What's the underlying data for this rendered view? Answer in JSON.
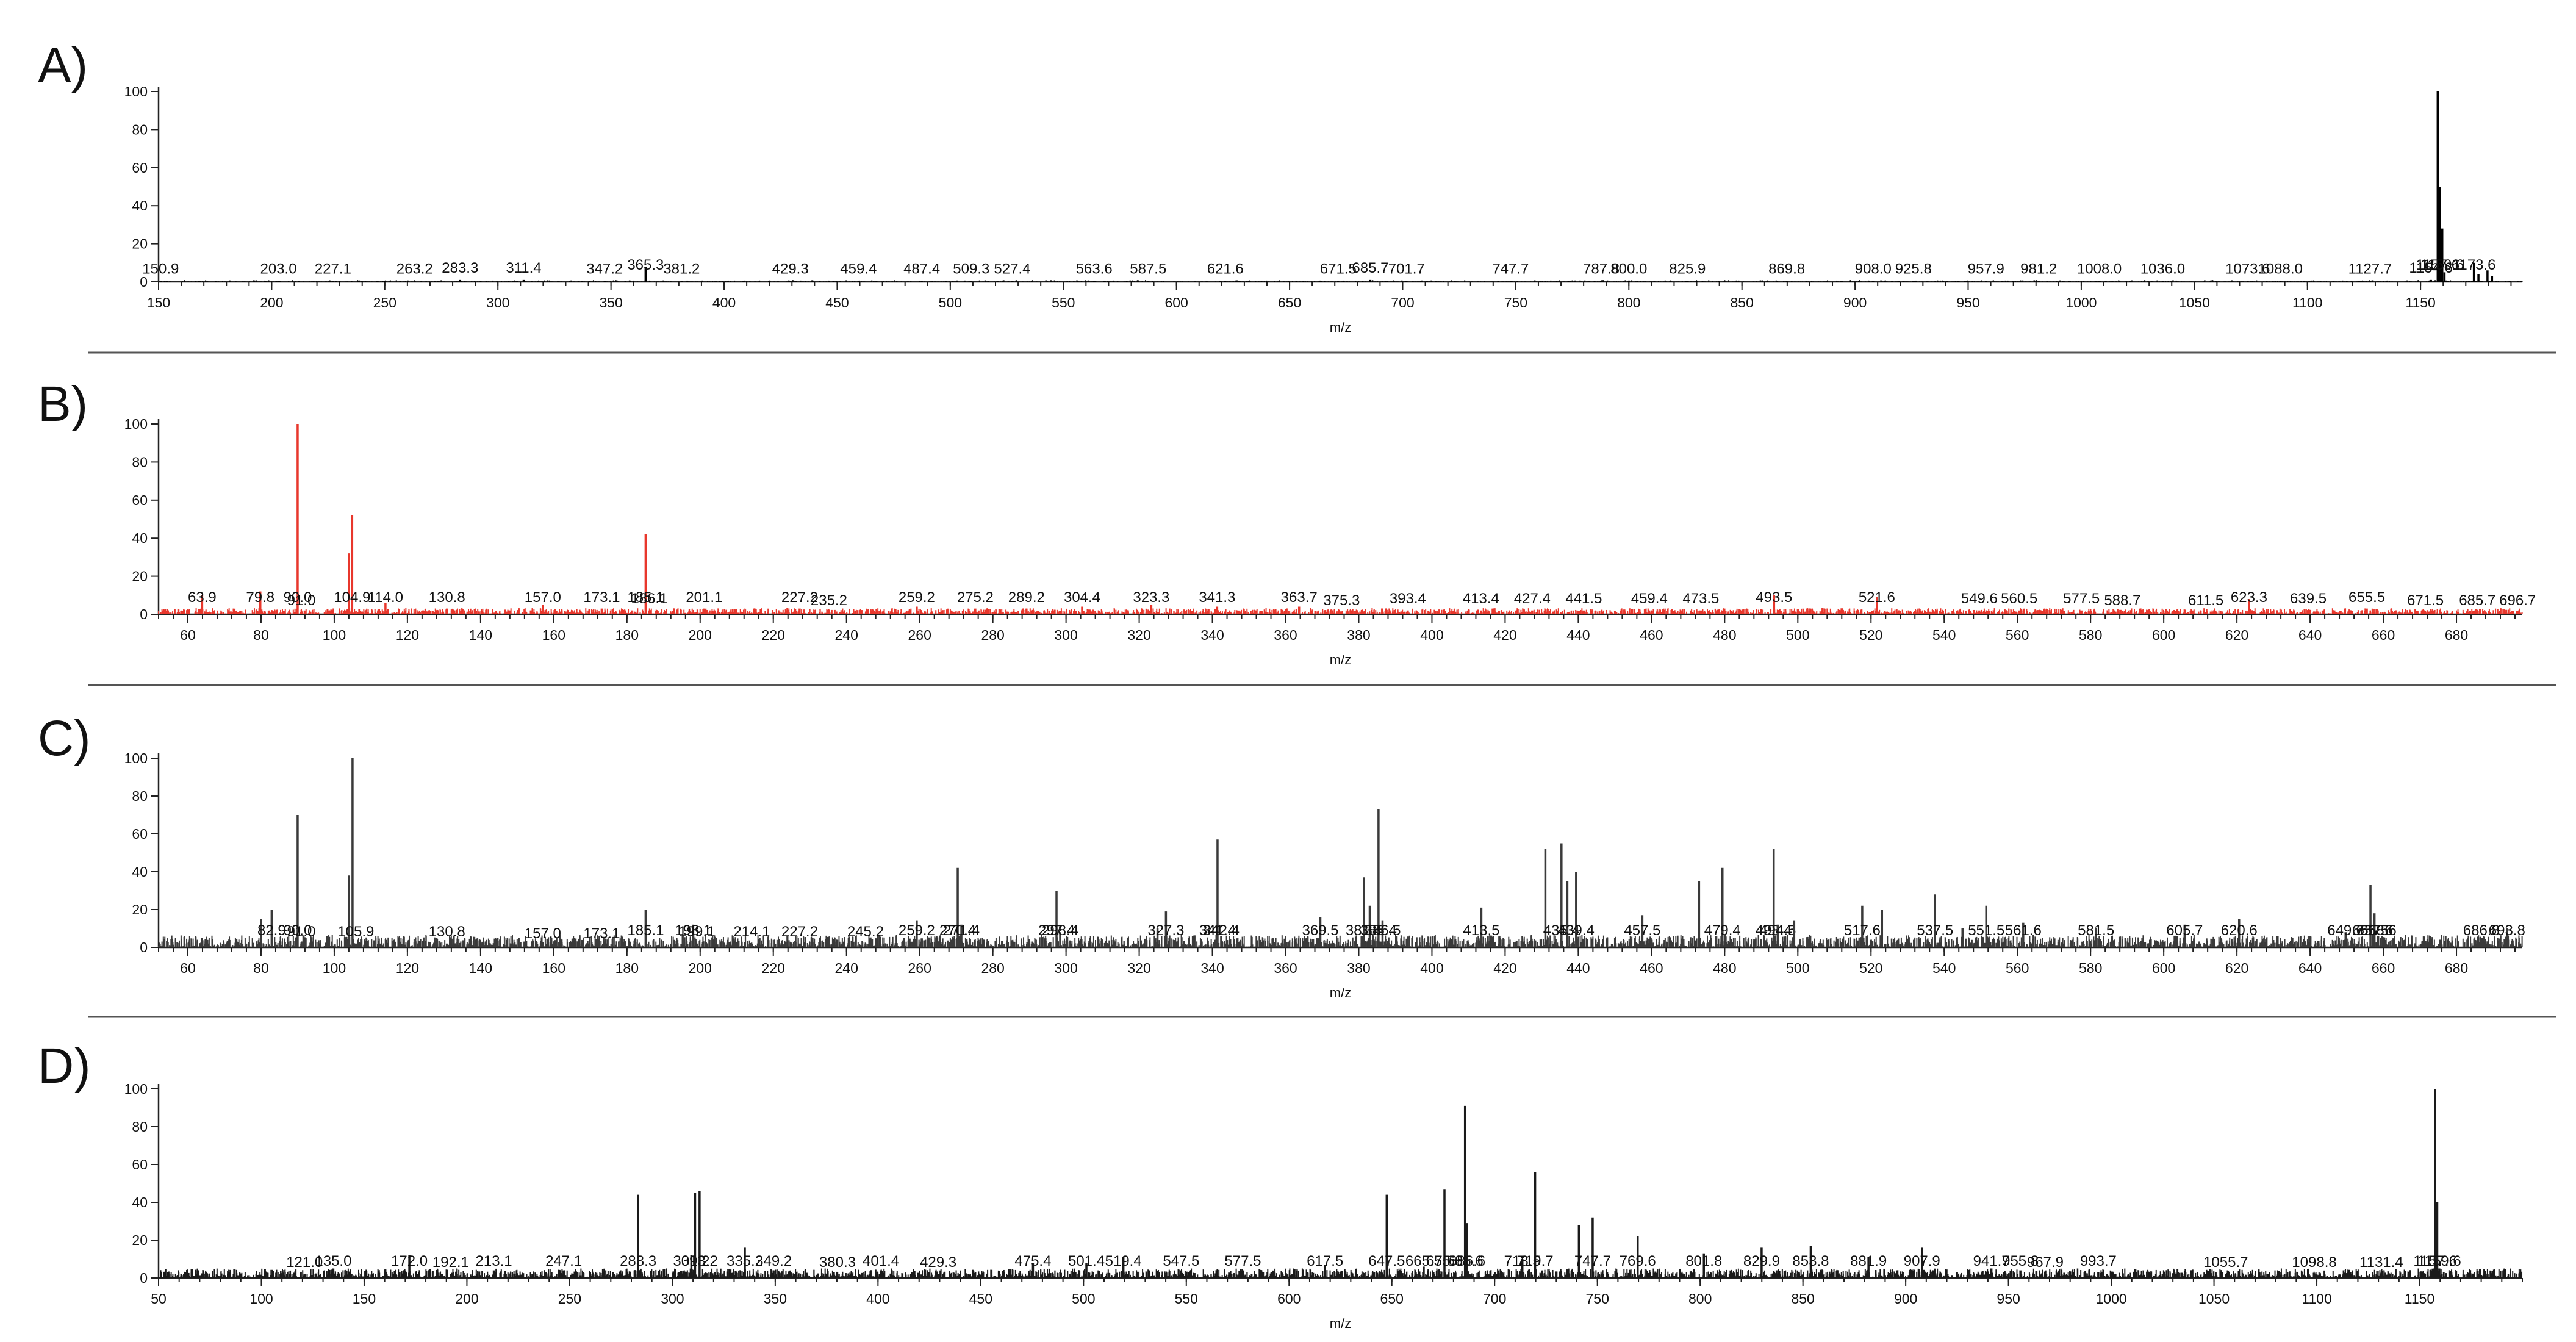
{
  "chart_data": [
    {
      "panel": "A)",
      "type": "bar",
      "color": "#000000",
      "xlabel": "m/z",
      "xlim": [
        150,
        1195
      ],
      "xticks": [
        150,
        200,
        250,
        300,
        350,
        400,
        450,
        500,
        550,
        600,
        650,
        700,
        750,
        800,
        850,
        900,
        950,
        1000,
        1050,
        1100,
        1150
      ],
      "ylim": [
        0,
        100
      ],
      "yticks": [
        0,
        20,
        40,
        60,
        80,
        100
      ],
      "peaks": [
        {
          "x": 150.9,
          "y": 0.5,
          "label": "150.9"
        },
        {
          "x": 203.0,
          "y": 0.5,
          "label": "203.0"
        },
        {
          "x": 227.1,
          "y": 0.5,
          "label": "227.1"
        },
        {
          "x": 263.2,
          "y": 0.5,
          "label": "263.2"
        },
        {
          "x": 283.3,
          "y": 1,
          "label": "283.3"
        },
        {
          "x": 311.4,
          "y": 1,
          "label": "311.4"
        },
        {
          "x": 347.2,
          "y": 0.5,
          "label": "347.2"
        },
        {
          "x": 365.3,
          "y": 8,
          "label": "365.3"
        },
        {
          "x": 381.2,
          "y": 0.5,
          "label": "381.2"
        },
        {
          "x": 429.3,
          "y": 0.5,
          "label": "429.3"
        },
        {
          "x": 459.4,
          "y": 0.5,
          "label": "459.4"
        },
        {
          "x": 487.4,
          "y": 0.5,
          "label": "487.4"
        },
        {
          "x": 509.3,
          "y": 0.5,
          "label": "509.3"
        },
        {
          "x": 527.4,
          "y": 0.5,
          "label": "527.4"
        },
        {
          "x": 563.6,
          "y": 0.5,
          "label": "563.6"
        },
        {
          "x": 587.5,
          "y": 0.5,
          "label": "587.5"
        },
        {
          "x": 621.6,
          "y": 0.5,
          "label": "621.6"
        },
        {
          "x": 671.5,
          "y": 0.5,
          "label": "671.5"
        },
        {
          "x": 685.7,
          "y": 1,
          "label": "685.7"
        },
        {
          "x": 701.7,
          "y": 0.5,
          "label": "701.7"
        },
        {
          "x": 747.7,
          "y": 0.5,
          "label": "747.7"
        },
        {
          "x": 787.8,
          "y": 0.5,
          "label": "787.8"
        },
        {
          "x": 800.0,
          "y": 0.5,
          "label": "800.0"
        },
        {
          "x": 825.9,
          "y": 0.5,
          "label": "825.9"
        },
        {
          "x": 869.8,
          "y": 0.5,
          "label": "869.8"
        },
        {
          "x": 908.0,
          "y": 0.5,
          "label": "908.0"
        },
        {
          "x": 925.8,
          "y": 0.5,
          "label": "925.8"
        },
        {
          "x": 957.9,
          "y": 0.5,
          "label": "957.9"
        },
        {
          "x": 981.2,
          "y": 0.5,
          "label": "981.2"
        },
        {
          "x": 1008.0,
          "y": 0.5,
          "label": "1008.0"
        },
        {
          "x": 1036.0,
          "y": 0.5,
          "label": "1036.0"
        },
        {
          "x": 1073.6,
          "y": 0.5,
          "label": "1073.6"
        },
        {
          "x": 1088.0,
          "y": 0.5,
          "label": "1088.0"
        },
        {
          "x": 1127.7,
          "y": 0.5,
          "label": "1127.7"
        },
        {
          "x": 1154.6,
          "y": 1,
          "label": "1154.6"
        },
        {
          "x": 1157.6,
          "y": 100,
          "label": "1157.6"
        },
        {
          "x": 1158.6,
          "y": 50
        },
        {
          "x": 1159.6,
          "y": 28,
          "label": "1159.6"
        },
        {
          "x": 1160.6,
          "y": 5
        },
        {
          "x": 1173.6,
          "y": 10,
          "label": "1173.6"
        },
        {
          "x": 1175.6,
          "y": 4
        },
        {
          "x": 1179.6,
          "y": 6
        },
        {
          "x": 1181.6,
          "y": 3
        }
      ]
    },
    {
      "panel": "B)",
      "type": "bar",
      "color": "#e8372c",
      "xlabel": "m/z",
      "xlim": [
        52,
        698
      ],
      "xticks": [
        60,
        80,
        100,
        120,
        140,
        160,
        180,
        200,
        220,
        240,
        260,
        280,
        300,
        320,
        340,
        360,
        380,
        400,
        420,
        440,
        460,
        480,
        500,
        520,
        540,
        560,
        580,
        600,
        620,
        640,
        660,
        680
      ],
      "ylim": [
        0,
        100
      ],
      "yticks": [
        0,
        20,
        40,
        60,
        80,
        100
      ],
      "peaks": [
        {
          "x": 63.9,
          "y": 10,
          "label": "63.9"
        },
        {
          "x": 79.8,
          "y": 12,
          "label": "79.8"
        },
        {
          "x": 90.0,
          "y": 100,
          "label": "90.0"
        },
        {
          "x": 91.0,
          "y": 1,
          "label": "91.0"
        },
        {
          "x": 104.0,
          "y": 32
        },
        {
          "x": 104.9,
          "y": 52,
          "label": "104.9"
        },
        {
          "x": 114.0,
          "y": 6,
          "label": "114.0"
        },
        {
          "x": 130.8,
          "y": 3,
          "label": "130.8"
        },
        {
          "x": 157.0,
          "y": 5,
          "label": "157.0"
        },
        {
          "x": 173.1,
          "y": 3,
          "label": "173.1"
        },
        {
          "x": 185.1,
          "y": 42,
          "label": "185.1"
        },
        {
          "x": 186.1,
          "y": 2,
          "label": "186.1"
        },
        {
          "x": 201.1,
          "y": 3,
          "label": "201.1"
        },
        {
          "x": 227.2,
          "y": 3,
          "label": "227.2"
        },
        {
          "x": 235.2,
          "y": 1,
          "label": "235.2"
        },
        {
          "x": 259.2,
          "y": 4,
          "label": "259.2"
        },
        {
          "x": 275.2,
          "y": 3,
          "label": "275.2"
        },
        {
          "x": 289.2,
          "y": 3,
          "label": "289.2"
        },
        {
          "x": 304.4,
          "y": 4,
          "label": "304.4"
        },
        {
          "x": 323.3,
          "y": 5,
          "label": "323.3"
        },
        {
          "x": 341.3,
          "y": 4,
          "label": "341.3"
        },
        {
          "x": 363.7,
          "y": 4,
          "label": "363.7"
        },
        {
          "x": 375.3,
          "y": 1,
          "label": "375.3"
        },
        {
          "x": 393.4,
          "y": 2,
          "label": "393.4"
        },
        {
          "x": 413.4,
          "y": 2,
          "label": "413.4"
        },
        {
          "x": 427.4,
          "y": 2,
          "label": "427.4"
        },
        {
          "x": 441.5,
          "y": 2,
          "label": "441.5"
        },
        {
          "x": 459.4,
          "y": 2,
          "label": "459.4"
        },
        {
          "x": 473.5,
          "y": 2,
          "label": "473.5"
        },
        {
          "x": 493.5,
          "y": 10,
          "label": "493.5"
        },
        {
          "x": 521.6,
          "y": 9,
          "label": "521.6"
        },
        {
          "x": 549.6,
          "y": 2,
          "label": "549.6"
        },
        {
          "x": 560.5,
          "y": 2,
          "label": "560.5"
        },
        {
          "x": 577.5,
          "y": 2,
          "label": "577.5"
        },
        {
          "x": 588.7,
          "y": 1,
          "label": "588.7"
        },
        {
          "x": 611.5,
          "y": 1,
          "label": "611.5"
        },
        {
          "x": 623.3,
          "y": 8,
          "label": "623.3"
        },
        {
          "x": 639.5,
          "y": 2,
          "label": "639.5"
        },
        {
          "x": 655.5,
          "y": 3,
          "label": "655.5"
        },
        {
          "x": 671.5,
          "y": 1,
          "label": "671.5"
        },
        {
          "x": 685.7,
          "y": 1,
          "label": "685.7"
        },
        {
          "x": 696.7,
          "y": 1,
          "label": "696.7"
        }
      ]
    },
    {
      "panel": "C)",
      "type": "bar",
      "color": "#3a3a3a",
      "xlabel": "m/z",
      "xlim": [
        52,
        698
      ],
      "xticks": [
        60,
        80,
        100,
        120,
        140,
        160,
        180,
        200,
        220,
        240,
        260,
        280,
        300,
        320,
        340,
        360,
        380,
        400,
        420,
        440,
        460,
        480,
        500,
        520,
        540,
        560,
        580,
        600,
        620,
        640,
        660,
        680
      ],
      "ylim": [
        0,
        100
      ],
      "yticks": [
        0,
        20,
        40,
        60,
        80,
        100
      ],
      "peaks": [
        {
          "x": 80.0,
          "y": 15
        },
        {
          "x": 82.9,
          "y": 20,
          "label": "82.9"
        },
        {
          "x": 90.0,
          "y": 70,
          "label": "90.0"
        },
        {
          "x": 91.0,
          "y": 2,
          "label": "91.0"
        },
        {
          "x": 104.0,
          "y": 38
        },
        {
          "x": 105.0,
          "y": 100
        },
        {
          "x": 105.9,
          "y": 2,
          "label": "105.9"
        },
        {
          "x": 130.8,
          "y": 2,
          "label": "130.8"
        },
        {
          "x": 157.0,
          "y": 1,
          "label": "157.0"
        },
        {
          "x": 173.1,
          "y": 1,
          "label": "173.1"
        },
        {
          "x": 185.1,
          "y": 20,
          "label": "185.1"
        },
        {
          "x": 198.1,
          "y": 12,
          "label": "198.1"
        },
        {
          "x": 199.1,
          "y": 2,
          "label": "199.1"
        },
        {
          "x": 214.1,
          "y": 2,
          "label": "214.1"
        },
        {
          "x": 227.2,
          "y": 2,
          "label": "227.2"
        },
        {
          "x": 245.2,
          "y": 2,
          "label": "245.2"
        },
        {
          "x": 259.2,
          "y": 14,
          "label": "259.2"
        },
        {
          "x": 270.4,
          "y": 42,
          "label": "270.4"
        },
        {
          "x": 271.4,
          "y": 12,
          "label": "271.4"
        },
        {
          "x": 297.4,
          "y": 30,
          "label": "297.4"
        },
        {
          "x": 298.4,
          "y": 8,
          "label": "298.4"
        },
        {
          "x": 325.0,
          "y": 10
        },
        {
          "x": 327.3,
          "y": 19,
          "label": "327.3"
        },
        {
          "x": 341.4,
          "y": 57,
          "label": "341.4"
        },
        {
          "x": 342.4,
          "y": 6,
          "label": "342.4"
        },
        {
          "x": 369.5,
          "y": 16,
          "label": "369.5"
        },
        {
          "x": 381.4,
          "y": 37,
          "label": "381.4"
        },
        {
          "x": 383.0,
          "y": 22
        },
        {
          "x": 385.4,
          "y": 73,
          "label": "385.4"
        },
        {
          "x": 386.5,
          "y": 14,
          "label": "386.5"
        },
        {
          "x": 413.5,
          "y": 21,
          "label": "413.5"
        },
        {
          "x": 431.0,
          "y": 52
        },
        {
          "x": 435.4,
          "y": 55,
          "label": "435.4"
        },
        {
          "x": 437.0,
          "y": 35
        },
        {
          "x": 439.4,
          "y": 40,
          "label": "439.4"
        },
        {
          "x": 457.5,
          "y": 17,
          "label": "457.5"
        },
        {
          "x": 473.0,
          "y": 35
        },
        {
          "x": 479.4,
          "y": 42,
          "label": "479.4"
        },
        {
          "x": 493.4,
          "y": 52,
          "label": "493.4"
        },
        {
          "x": 494.5,
          "y": 12,
          "label": "494.5"
        },
        {
          "x": 499.0,
          "y": 14
        },
        {
          "x": 517.6,
          "y": 22,
          "label": "517.6"
        },
        {
          "x": 523.0,
          "y": 20
        },
        {
          "x": 537.5,
          "y": 28,
          "label": "537.5"
        },
        {
          "x": 545.0,
          "y": 10
        },
        {
          "x": 551.5,
          "y": 22,
          "label": "551.5"
        },
        {
          "x": 561.6,
          "y": 13,
          "label": "561.6"
        },
        {
          "x": 581.5,
          "y": 10,
          "label": "581.5"
        },
        {
          "x": 605.7,
          "y": 12,
          "label": "605.7"
        },
        {
          "x": 620.6,
          "y": 15,
          "label": "620.6"
        },
        {
          "x": 649.7,
          "y": 8,
          "label": "649.7"
        },
        {
          "x": 656.5,
          "y": 33,
          "label": "656.5"
        },
        {
          "x": 657.6,
          "y": 18,
          "label": "657.6"
        },
        {
          "x": 658.6,
          "y": 6,
          "label": "658.6"
        },
        {
          "x": 686.8,
          "y": 5,
          "label": "686.8"
        },
        {
          "x": 693.8,
          "y": 10,
          "label": "693.8"
        }
      ]
    },
    {
      "panel": "D)",
      "type": "bar",
      "color": "#1a1a1a",
      "xlabel": "m/z",
      "xlim": [
        50,
        1200
      ],
      "xticks": [
        50,
        100,
        150,
        200,
        250,
        300,
        350,
        400,
        450,
        500,
        550,
        600,
        650,
        700,
        750,
        800,
        850,
        900,
        950,
        1000,
        1050,
        1100,
        1150
      ],
      "ylim": [
        0,
        100
      ],
      "yticks": [
        0,
        20,
        40,
        60,
        80,
        100
      ],
      "peaks": [
        {
          "x": 121.0,
          "y": 2,
          "label": "121.0"
        },
        {
          "x": 135.0,
          "y": 5,
          "label": "135.0"
        },
        {
          "x": 172.0,
          "y": 12,
          "label": "172.0"
        },
        {
          "x": 192.1,
          "y": 2,
          "label": "192.1"
        },
        {
          "x": 213.1,
          "y": 4,
          "label": "213.1"
        },
        {
          "x": 247.1,
          "y": 4,
          "label": "247.1"
        },
        {
          "x": 283.3,
          "y": 44,
          "label": "283.3"
        },
        {
          "x": 309.2,
          "y": 12,
          "label": "309.2"
        },
        {
          "x": 311.0,
          "y": 45
        },
        {
          "x": 313.2,
          "y": 46,
          "label": "313.2"
        },
        {
          "x": 335.2,
          "y": 16,
          "label": "335.2"
        },
        {
          "x": 349.2,
          "y": 4,
          "label": "349.2"
        },
        {
          "x": 380.3,
          "y": 2,
          "label": "380.3"
        },
        {
          "x": 401.4,
          "y": 4,
          "label": "401.4"
        },
        {
          "x": 429.3,
          "y": 2,
          "label": "429.3"
        },
        {
          "x": 475.4,
          "y": 8,
          "label": "475.4"
        },
        {
          "x": 501.4,
          "y": 8,
          "label": "501.4"
        },
        {
          "x": 519.4,
          "y": 11,
          "label": "519.4"
        },
        {
          "x": 547.5,
          "y": 4,
          "label": "547.5"
        },
        {
          "x": 577.5,
          "y": 4,
          "label": "577.5"
        },
        {
          "x": 617.5,
          "y": 7,
          "label": "617.5"
        },
        {
          "x": 647.5,
          "y": 44,
          "label": "647.5"
        },
        {
          "x": 665.5,
          "y": 6,
          "label": "665.5"
        },
        {
          "x": 675.6,
          "y": 47,
          "label": "675.6"
        },
        {
          "x": 685.6,
          "y": 91,
          "label": "685.6"
        },
        {
          "x": 686.6,
          "y": 29,
          "label": "686.6"
        },
        {
          "x": 713.5,
          "y": 10,
          "label": "713.5"
        },
        {
          "x": 719.7,
          "y": 56,
          "label": "719.7"
        },
        {
          "x": 741.0,
          "y": 28
        },
        {
          "x": 747.7,
          "y": 32,
          "label": "747.7"
        },
        {
          "x": 769.6,
          "y": 22,
          "label": "769.6"
        },
        {
          "x": 801.8,
          "y": 13,
          "label": "801.8"
        },
        {
          "x": 829.9,
          "y": 16,
          "label": "829.9"
        },
        {
          "x": 853.8,
          "y": 17,
          "label": "853.8"
        },
        {
          "x": 881.9,
          "y": 11,
          "label": "881.9"
        },
        {
          "x": 907.9,
          "y": 16,
          "label": "907.9"
        },
        {
          "x": 941.7,
          "y": 5,
          "label": "941.7"
        },
        {
          "x": 955.8,
          "y": 4,
          "label": "955.8"
        },
        {
          "x": 967.9,
          "y": 2,
          "label": "967.9"
        },
        {
          "x": 993.7,
          "y": 3,
          "label": "993.7"
        },
        {
          "x": 1055.7,
          "y": 2,
          "label": "1055.7"
        },
        {
          "x": 1098.8,
          "y": 2,
          "label": "1098.8"
        },
        {
          "x": 1131.4,
          "y": 2,
          "label": "1131.4"
        },
        {
          "x": 1157.6,
          "y": 100,
          "label": "1157.6"
        },
        {
          "x": 1158.6,
          "y": 40
        },
        {
          "x": 1159.6,
          "y": 5,
          "label": "1159.6"
        }
      ]
    }
  ]
}
